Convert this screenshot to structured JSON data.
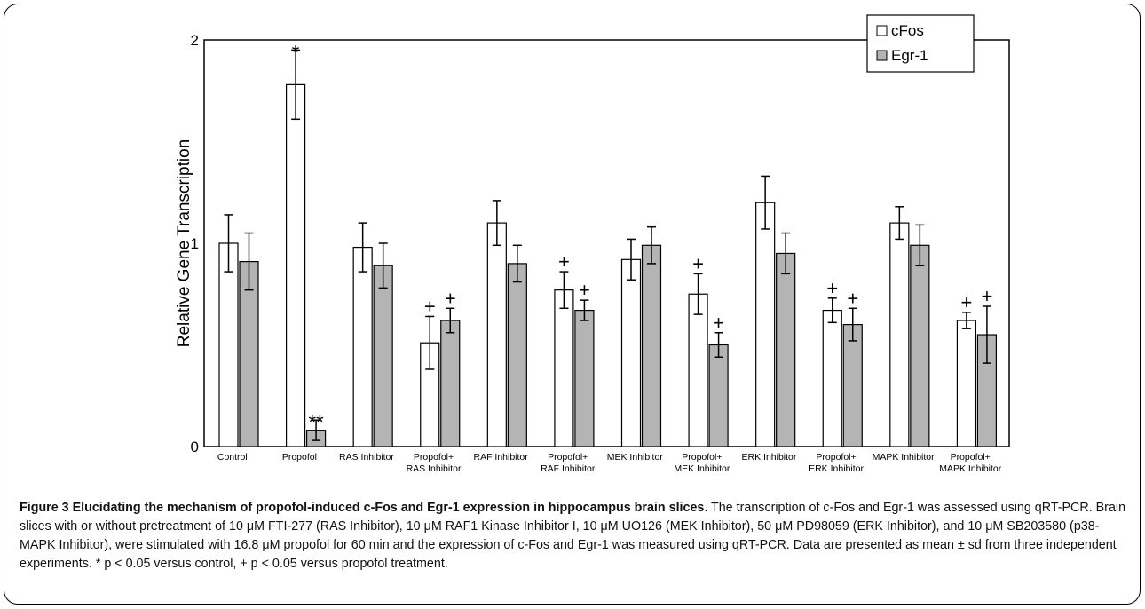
{
  "chart_data": {
    "type": "bar",
    "ylabel": "Relative Gene Transcription",
    "ylim": [
      0,
      2
    ],
    "yticks": [
      "0",
      "1",
      "2"
    ],
    "categories": [
      [
        "Control"
      ],
      [
        "Propofol"
      ],
      [
        "RAS Inhibitor"
      ],
      [
        "Propofol+",
        "RAS Inhibitor"
      ],
      [
        "RAF Inhibitor"
      ],
      [
        "Propofol+",
        "RAF Inhibitor"
      ],
      [
        "MEK Inhibitor"
      ],
      [
        "Propofol+",
        "MEK Inhibitor"
      ],
      [
        "ERK Inhibitor"
      ],
      [
        "Propofol+",
        "ERK Inhibitor"
      ],
      [
        "MAPK Inhibitor"
      ],
      [
        "Propofol+",
        "MAPK Inhibitor"
      ]
    ],
    "series": [
      {
        "name": "cFos",
        "color": "#ffffff",
        "values": [
          1.0,
          1.78,
          0.98,
          0.51,
          1.1,
          0.77,
          0.92,
          0.75,
          1.2,
          0.67,
          1.1,
          0.62
        ],
        "errors": [
          0.14,
          0.17,
          0.12,
          0.13,
          0.11,
          0.09,
          0.1,
          0.1,
          0.13,
          0.06,
          0.08,
          0.04
        ],
        "marks": [
          "",
          "*",
          "",
          "+",
          "",
          "+",
          "",
          "+",
          "",
          "+",
          "",
          "+"
        ]
      },
      {
        "name": "Egr-1",
        "color": "#b4b4b4",
        "values": [
          0.91,
          0.08,
          0.89,
          0.62,
          0.9,
          0.67,
          0.99,
          0.5,
          0.95,
          0.6,
          0.99,
          0.55
        ],
        "errors": [
          0.14,
          0.05,
          0.11,
          0.06,
          0.09,
          0.05,
          0.09,
          0.06,
          0.1,
          0.08,
          0.1,
          0.14
        ],
        "marks": [
          "",
          "**",
          "",
          "+",
          "",
          "+",
          "",
          "+",
          "",
          "+",
          "",
          "+"
        ]
      }
    ],
    "legend_position": "top-right"
  },
  "caption": {
    "title": "Figure 3 Elucidating the mechanism of propofol-induced c-Fos and Egr-1 expression in hippocampus brain slices",
    "text": ". The transcription of c-Fos and Egr-1 was assessed using qRT-PCR. Brain slices with or without pretreatment of 10 μM FTI-277 (RAS Inhibitor), 10 μM RAF1 Kinase Inhibitor I, 10 μM UO126 (MEK Inhibitor), 50 μM PD98059 (ERK Inhibitor), and 10 μM SB203580 (p38-MAPK Inhibitor), were stimulated with 16.8 μM propofol for 60 min and the expression of c-Fos and Egr-1 was measured using qRT-PCR. Data are presented as mean ± sd from three independent experiments. * p < 0.05 versus control, + p < 0.05 versus propofol treatment."
  }
}
